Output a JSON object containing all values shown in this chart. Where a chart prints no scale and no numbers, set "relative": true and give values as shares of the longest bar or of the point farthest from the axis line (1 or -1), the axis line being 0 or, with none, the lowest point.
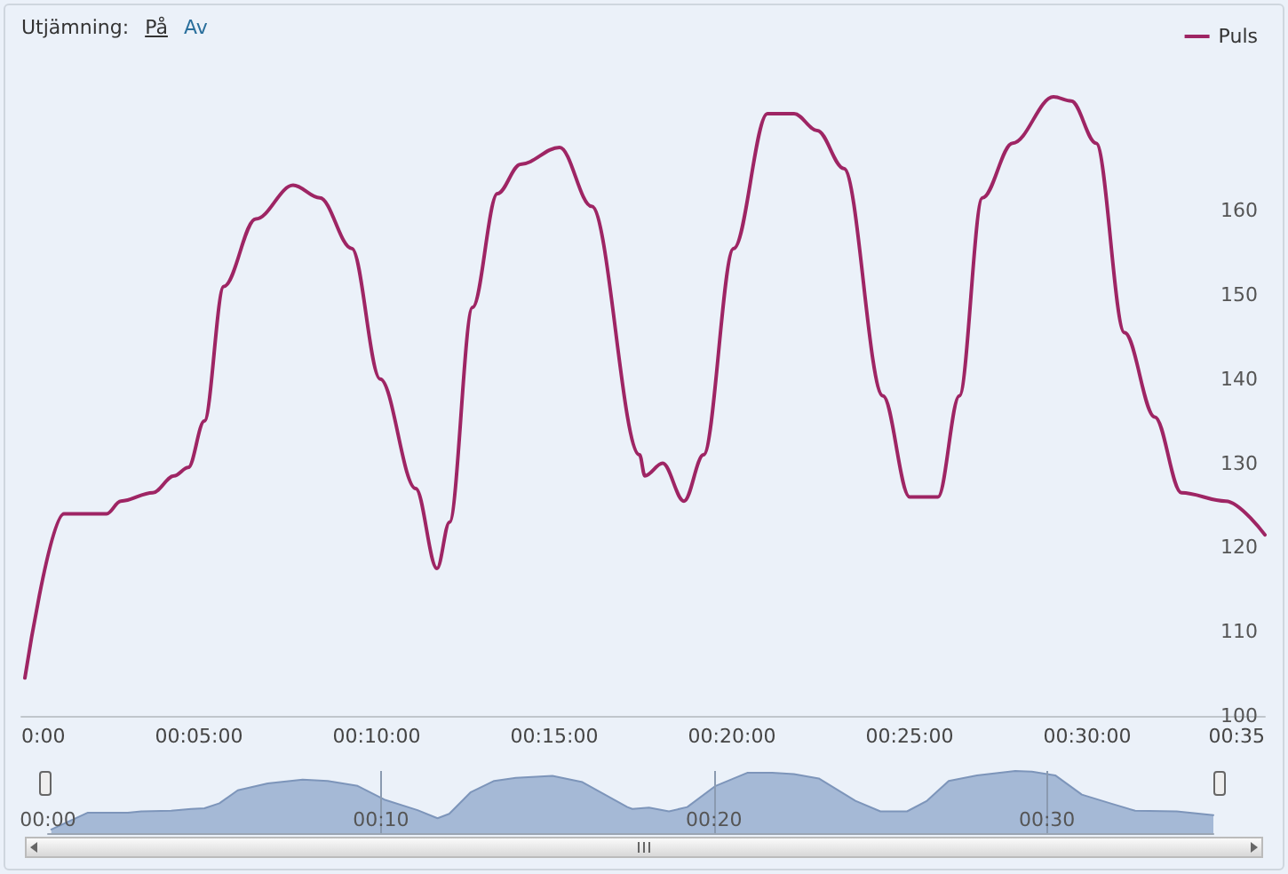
{
  "chart_data": [
    {
      "type": "line",
      "annotations": [
        "Utjämning:",
        "På",
        "Av"
      ],
      "legend": "top right",
      "grid": false,
      "marker": "none",
      "line_style": "solid",
      "xlim": [
        0,
        35
      ],
      "xticks": [
        {
          "value": 0,
          "label": "0:00"
        },
        {
          "value": 5,
          "label": "00:05:00"
        },
        {
          "value": 10,
          "label": "00:10:00"
        },
        {
          "value": 15,
          "label": "00:15:00"
        },
        {
          "value": 20,
          "label": "00:20:00"
        },
        {
          "value": 25,
          "label": "00:25:00"
        },
        {
          "value": 30,
          "label": "00:30:00"
        },
        {
          "value": 35,
          "label": "00:35"
        }
      ],
      "ylim": [
        100,
        185
      ],
      "yticks": [
        100,
        110,
        120,
        130,
        140,
        150,
        160
      ],
      "series": [
        {
          "name": "Puls",
          "color": "#9e2564",
          "x": [
            0.1,
            1.2,
            2.4,
            2.8,
            3.7,
            4.3,
            4.7,
            5.15,
            5.7,
            6.6,
            7.65,
            8.4,
            9.3,
            10.1,
            11.1,
            11.7,
            12.05,
            12.7,
            13.4,
            14.05,
            15.15,
            16.05,
            17.4,
            17.55,
            18.05,
            18.65,
            19.2,
            20.05,
            21,
            21.75,
            22.4,
            23.15,
            24.25,
            25,
            25.8,
            26.4,
            27.05,
            27.9,
            29.05,
            29.55,
            30.25,
            31.05,
            31.9,
            32.65,
            33.9,
            35
          ],
          "values": [
            104.5,
            124,
            124,
            125.5,
            126.5,
            128.5,
            129.5,
            135,
            151,
            159,
            163,
            161.5,
            155.5,
            140,
            127,
            117.5,
            123,
            148.5,
            162,
            165.5,
            167.5,
            160.5,
            131,
            128.5,
            130,
            125.5,
            131,
            155.5,
            171.5,
            171.5,
            169.5,
            165,
            138,
            126,
            126,
            138,
            161.5,
            168,
            173.5,
            173,
            168,
            145.5,
            135.5,
            126.5,
            125.5,
            121.5
          ]
        }
      ]
    },
    {
      "type": "area",
      "relative": true,
      "grid": "x",
      "tick_labels": "x",
      "legend": false,
      "xlim": [
        0,
        35
      ],
      "xticks": [
        {
          "value": 0,
          "label": "00:00"
        },
        {
          "value": 10,
          "label": "00:10"
        },
        {
          "value": 20,
          "label": "00:20"
        },
        {
          "value": 30,
          "label": "00:30"
        }
      ],
      "series": [
        {
          "color": "#a5b9d6",
          "x": [
            0.1,
            1.2,
            2.4,
            2.8,
            3.7,
            4.3,
            4.7,
            5.15,
            5.7,
            6.6,
            7.65,
            8.4,
            9.3,
            10.1,
            11.1,
            11.7,
            12.05,
            12.7,
            13.4,
            14.05,
            15.15,
            16.05,
            17.4,
            17.55,
            18.05,
            18.65,
            19.2,
            20.05,
            21,
            21.75,
            22.4,
            23.15,
            24.25,
            25,
            25.8,
            26.4,
            27.05,
            27.9,
            29.05,
            29.55,
            30.25,
            31.05,
            31.9,
            32.65,
            33.9,
            35
          ],
          "values": [
            0.06,
            0.33,
            0.33,
            0.35,
            0.36,
            0.39,
            0.4,
            0.48,
            0.69,
            0.8,
            0.86,
            0.84,
            0.76,
            0.54,
            0.37,
            0.24,
            0.31,
            0.66,
            0.84,
            0.89,
            0.92,
            0.82,
            0.42,
            0.39,
            0.41,
            0.35,
            0.42,
            0.76,
            0.97,
            0.97,
            0.95,
            0.88,
            0.52,
            0.35,
            0.35,
            0.52,
            0.84,
            0.93,
            1,
            0.99,
            0.93,
            0.62,
            0.48,
            0.36,
            0.35,
            0.29
          ]
        }
      ]
    }
  ]
}
